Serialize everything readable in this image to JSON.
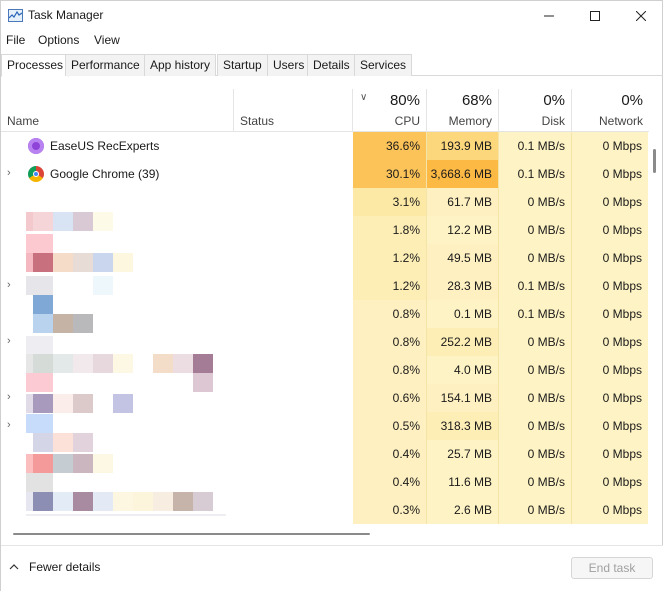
{
  "window": {
    "title": "Task Manager"
  },
  "menu": [
    "File",
    "Options",
    "View"
  ],
  "tabs": [
    "Processes",
    "Performance",
    "App history",
    "Startup",
    "Users",
    "Details",
    "Services"
  ],
  "active_tab": "Processes",
  "columns": {
    "name": "Name",
    "status": "Status",
    "cpu": {
      "pct": "80%",
      "label": "CPU"
    },
    "memory": {
      "pct": "68%",
      "label": "Memory"
    },
    "disk": {
      "pct": "0%",
      "label": "Disk"
    },
    "network": {
      "pct": "0%",
      "label": "Network"
    }
  },
  "processes": [
    {
      "name": "EaseUS RecExperts",
      "icon": "easeus-icon",
      "expandable": false,
      "cpu": "36.6%",
      "memory": "193.9 MB",
      "disk": "0.1 MB/s",
      "network": "0 Mbps"
    },
    {
      "name": "Google Chrome (39)",
      "icon": "chrome-icon",
      "expandable": true,
      "cpu": "30.1%",
      "memory": "3,668.6 MB",
      "disk": "0.1 MB/s",
      "network": "0 Mbps"
    },
    {
      "name": "",
      "expandable": false,
      "cpu": "3.1%",
      "memory": "61.7 MB",
      "disk": "0 MB/s",
      "network": "0 Mbps"
    },
    {
      "name": "",
      "expandable": false,
      "cpu": "1.8%",
      "memory": "12.2 MB",
      "disk": "0 MB/s",
      "network": "0 Mbps"
    },
    {
      "name": "",
      "expandable": false,
      "cpu": "1.2%",
      "memory": "49.5 MB",
      "disk": "0 MB/s",
      "network": "0 Mbps"
    },
    {
      "name": "",
      "expandable": true,
      "cpu": "1.2%",
      "memory": "28.3 MB",
      "disk": "0.1 MB/s",
      "network": "0 Mbps"
    },
    {
      "name": "",
      "expandable": false,
      "cpu": "0.8%",
      "memory": "0.1 MB",
      "disk": "0.1 MB/s",
      "network": "0 Mbps"
    },
    {
      "name": "",
      "expandable": true,
      "cpu": "0.8%",
      "memory": "252.2 MB",
      "disk": "0 MB/s",
      "network": "0 Mbps"
    },
    {
      "name": "",
      "expandable": false,
      "cpu": "0.8%",
      "memory": "4.0 MB",
      "disk": "0 MB/s",
      "network": "0 Mbps"
    },
    {
      "name": "",
      "expandable": true,
      "cpu": "0.6%",
      "memory": "154.1 MB",
      "disk": "0 MB/s",
      "network": "0 Mbps"
    },
    {
      "name": "",
      "expandable": true,
      "cpu": "0.5%",
      "memory": "318.3 MB",
      "disk": "0 MB/s",
      "network": "0 Mbps"
    },
    {
      "name": "",
      "expandable": false,
      "cpu": "0.4%",
      "memory": "25.7 MB",
      "disk": "0 MB/s",
      "network": "0 Mbps"
    },
    {
      "name": "",
      "expandable": false,
      "cpu": "0.4%",
      "memory": "11.6 MB",
      "disk": "0 MB/s",
      "network": "0 Mbps"
    },
    {
      "name": "",
      "expandable": false,
      "cpu": "0.3%",
      "memory": "2.6 MB",
      "disk": "0 MB/s",
      "network": "0 Mbps"
    }
  ],
  "colors": {
    "heat_high": "#fcc359",
    "heat_mid": "#fdd77c",
    "heat_low": "#fdf1c8",
    "heat_base": "#fef3c4"
  },
  "footer": {
    "fewer_details": "Fewer details",
    "end_task": "End task"
  }
}
